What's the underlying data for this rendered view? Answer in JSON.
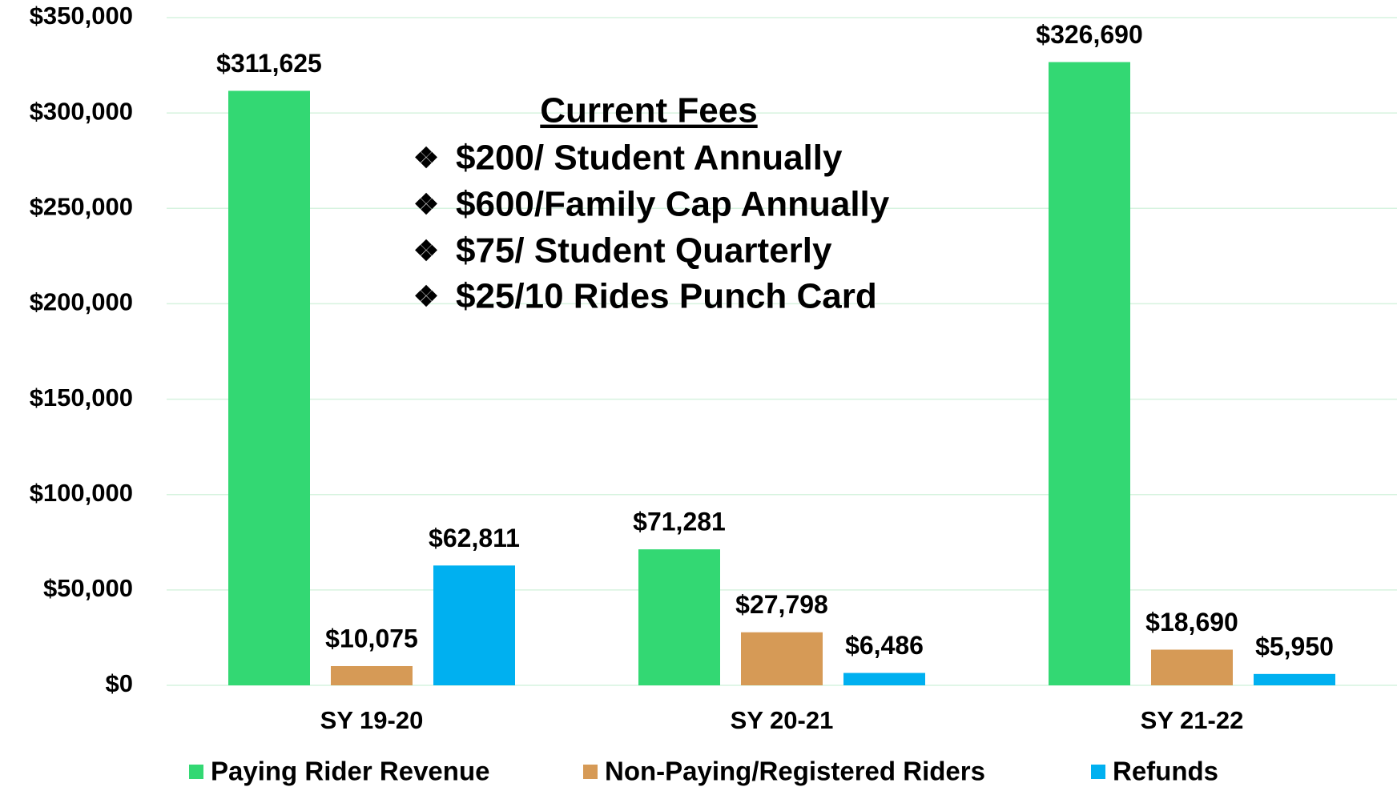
{
  "chart_data": {
    "type": "bar",
    "categories": [
      "SY 19-20",
      "SY 20-21",
      "SY 21-22"
    ],
    "series": [
      {
        "name": "Paying Rider Revenue",
        "color": "#33d873",
        "values": [
          311625,
          71281,
          326690
        ],
        "value_labels": [
          "$311,625",
          "$71,281",
          "$326,690"
        ]
      },
      {
        "name": "Non-Paying/Registered Riders",
        "color": "#d69a56",
        "values": [
          10075,
          27798,
          18690
        ],
        "value_labels": [
          "$10,075",
          "$27,798",
          "$18,690"
        ]
      },
      {
        "name": "Refunds",
        "color": "#00b0f0",
        "values": [
          62811,
          6486,
          5950
        ],
        "value_labels": [
          "$62,811",
          "$6,486",
          "$5,950"
        ]
      }
    ],
    "ylim": [
      0,
      350000
    ],
    "yticks": [
      {
        "value": 0,
        "label": "$0"
      },
      {
        "value": 50000,
        "label": "$50,000"
      },
      {
        "value": 100000,
        "label": "$100,000"
      },
      {
        "value": 150000,
        "label": "$150,000"
      },
      {
        "value": 200000,
        "label": "$200,000"
      },
      {
        "value": 250000,
        "label": "$250,000"
      },
      {
        "value": 300000,
        "label": "$300,000"
      },
      {
        "value": 350000,
        "label": "$350,000"
      }
    ],
    "grid": true,
    "annotation": {
      "title": "Current  Fees",
      "items": [
        "$200/ Student Annually",
        "$600/Family Cap Annually",
        "$75/ Student Quarterly",
        "$25/10 Rides Punch Card"
      ]
    }
  }
}
